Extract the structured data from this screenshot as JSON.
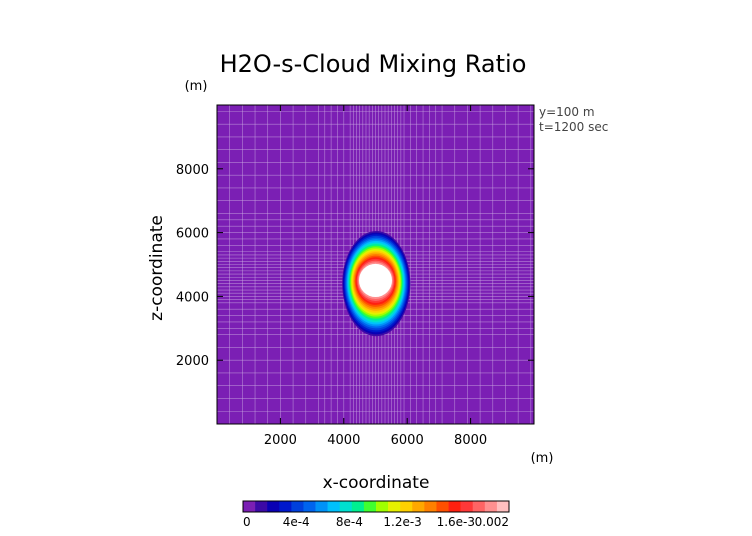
{
  "chart_data": {
    "type": "heatmap",
    "title": "H2O-s-Cloud Mixing Ratio",
    "xlabel": "x-coordinate",
    "ylabel": "z-coordinate",
    "x_unit": "(m)",
    "z_unit": "(m)",
    "xlim": [
      0,
      10000
    ],
    "ylim": [
      0,
      10000
    ],
    "x_ticks": [
      2000,
      4000,
      6000,
      8000
    ],
    "x_tick_labels": [
      "2000",
      "4000",
      "6000",
      "8000"
    ],
    "y_ticks": [
      2000,
      4000,
      6000,
      8000
    ],
    "y_tick_labels": [
      "2000",
      "4000",
      "6000",
      "8000"
    ],
    "annotations": [
      "y=100  m",
      "t=1200  sec"
    ],
    "background_color": "#7b1fb4",
    "grid": true,
    "field": {
      "center_x": 5000,
      "center_z": 4500,
      "core_radius_x": 520,
      "core_radius_z": 520,
      "outer_left": 3950,
      "outer_right": 6100,
      "outer_top": 6050,
      "outer_bottom": 2750,
      "core_value": 0.002,
      "core_exceeds_colorbar": true
    },
    "colorbar": {
      "min": 0,
      "max": 0.002,
      "tick_labels": [
        "0",
        "4e-4",
        "8e-4",
        "1.2e-3",
        "1.6e-3",
        "0.002"
      ],
      "colors": [
        "#7b1fb4",
        "#3c0aa6",
        "#0a00b4",
        "#0018cc",
        "#0040dd",
        "#0064ee",
        "#0092f8",
        "#00c0fc",
        "#00e0d0",
        "#00f090",
        "#40ff30",
        "#a0ff00",
        "#e6f000",
        "#ffd000",
        "#ffa800",
        "#ff8000",
        "#ff5000",
        "#ff2010",
        "#ff3838",
        "#ff6464",
        "#ff9090",
        "#ffc0c0"
      ]
    }
  }
}
